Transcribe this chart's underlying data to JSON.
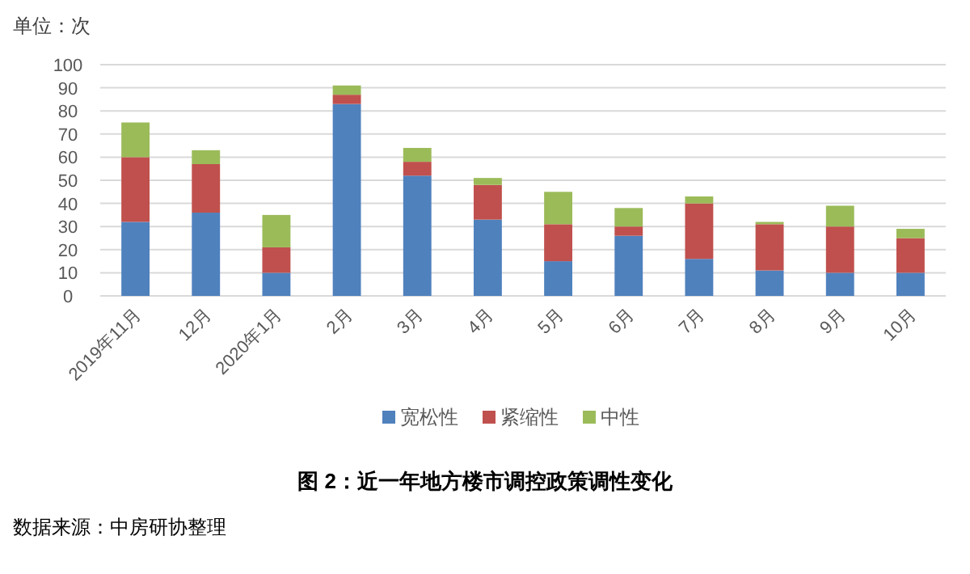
{
  "chart_data": {
    "type": "bar",
    "stacked": true,
    "ylabel": "单位：次",
    "title": "图 2：近一年地方楼市调控政策调性变化",
    "annotations": [
      "数据来源：中房研协整理"
    ],
    "categories": [
      "2019年11月",
      "12月",
      "2020年1月",
      "2月",
      "3月",
      "4月",
      "5月",
      "6月",
      "7月",
      "8月",
      "9月",
      "10月"
    ],
    "series": [
      {
        "name": "宽松性",
        "color": "#4f81bd",
        "values": [
          32,
          36,
          10,
          83,
          52,
          33,
          15,
          26,
          16,
          11,
          10,
          10
        ]
      },
      {
        "name": "紧缩性",
        "color": "#c0504d",
        "values": [
          28,
          21,
          11,
          4,
          6,
          15,
          16,
          4,
          24,
          20,
          20,
          15
        ]
      },
      {
        "name": "中性",
        "color": "#9bbb59",
        "values": [
          15,
          6,
          14,
          4,
          6,
          3,
          14,
          8,
          3,
          1,
          9,
          4
        ]
      }
    ],
    "ylim": [
      0,
      100
    ],
    "yticks": [
      0,
      10,
      20,
      30,
      40,
      50,
      60,
      70,
      80,
      90,
      100
    ],
    "grid": "y",
    "legend": "bottom"
  }
}
